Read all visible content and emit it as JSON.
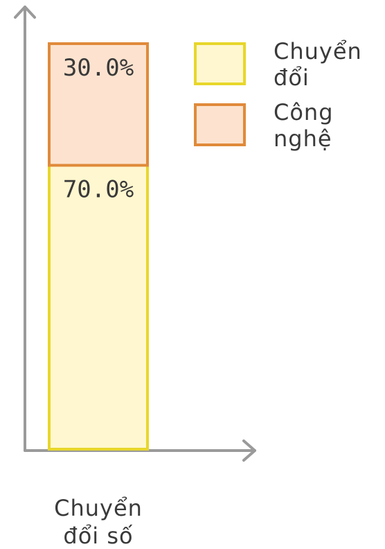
{
  "chart_data": {
    "type": "bar",
    "stacked": true,
    "categories": [
      "Chuyển đổi số"
    ],
    "category_label_lines": [
      [
        "Chuyển",
        "đổi số"
      ]
    ],
    "series": [
      {
        "name": "Chuyển đổi",
        "name_lines": [
          "Chuyển",
          "đổi"
        ],
        "values": [
          70.0
        ],
        "value_labels": [
          "70.0%"
        ],
        "fill": "#fff7cf",
        "stroke": "#e8d62a"
      },
      {
        "name": "Công nghệ",
        "name_lines": [
          "Công",
          "nghệ"
        ],
        "values": [
          30.0
        ],
        "value_labels": [
          "30.0%"
        ],
        "fill": "#fde3cf",
        "stroke": "#e08a3a"
      }
    ],
    "ylim": [
      0,
      100
    ],
    "grid": false,
    "legend": "top-right",
    "axis_color": "#9a9a9a"
  }
}
